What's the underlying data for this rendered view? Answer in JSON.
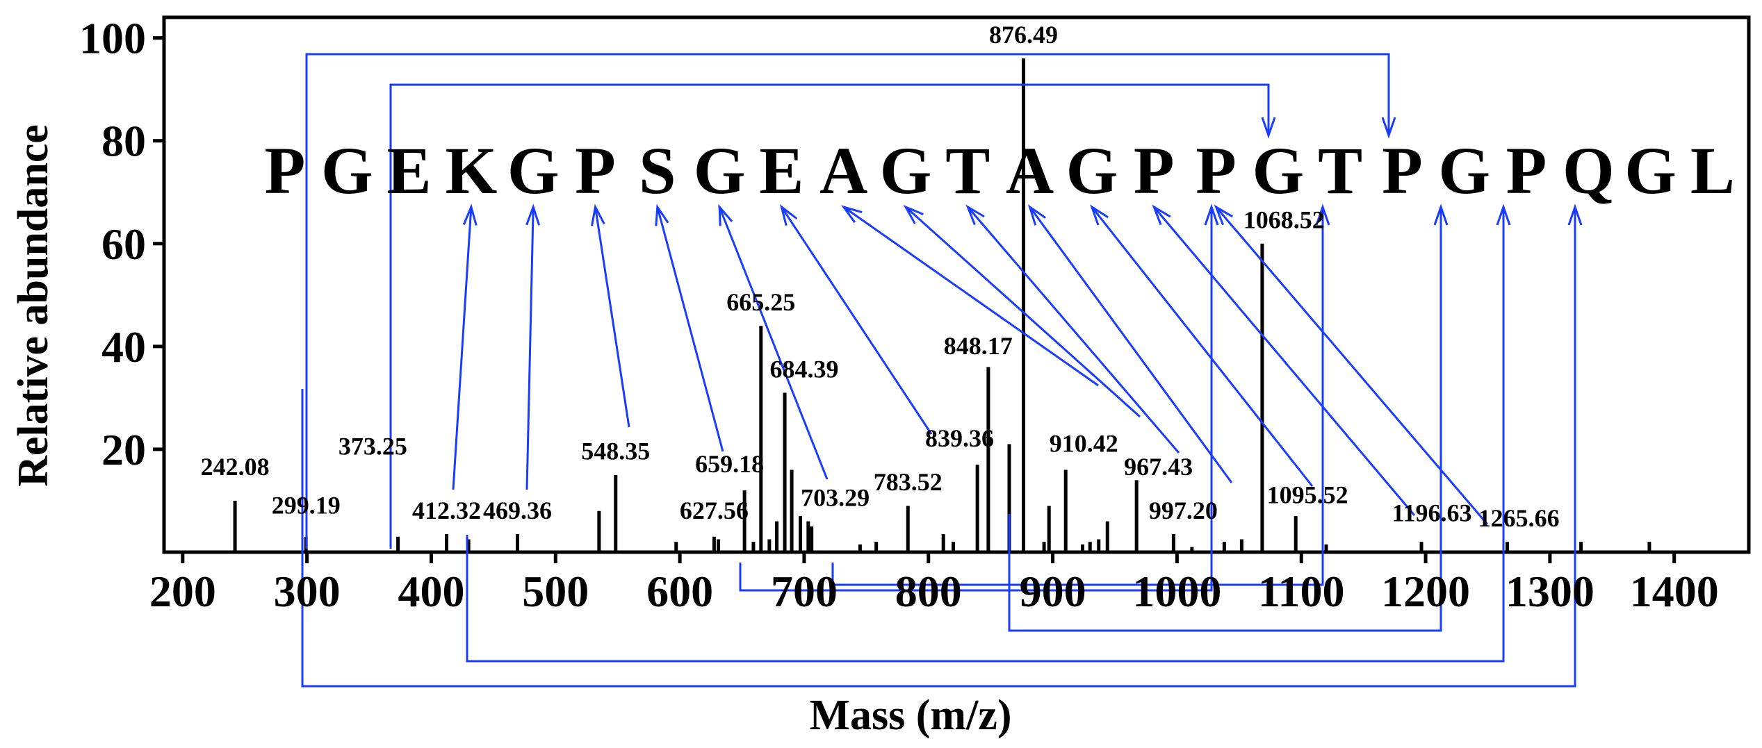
{
  "chart_data": {
    "type": "bar",
    "xlabel": "Mass (m/z)",
    "ylabel": "Relative abundance",
    "xlim": [
      185,
      1460
    ],
    "ylim": [
      0,
      104
    ],
    "xticks": [
      200,
      300,
      400,
      500,
      600,
      700,
      800,
      900,
      1000,
      1100,
      1200,
      1300,
      1400
    ],
    "yticks": [
      20,
      40,
      60,
      80,
      100
    ],
    "accent_color": "#1a3cff",
    "sequence": [
      "P",
      "G",
      "E",
      "K",
      "G",
      "P",
      "S",
      "G",
      "E",
      "A",
      "G",
      "T",
      "A",
      "G",
      "P",
      "P",
      "G",
      "T",
      "P",
      "G",
      "P",
      "Q",
      "G",
      "L"
    ],
    "peaks": [
      {
        "mz": 242.08,
        "intensity": 10
      },
      {
        "mz": 299.19,
        "intensity": 3
      },
      {
        "mz": 373.25,
        "intensity": 3
      },
      {
        "mz": 412.32,
        "intensity": 3.5
      },
      {
        "mz": 430.0,
        "intensity": 2.5
      },
      {
        "mz": 469.36,
        "intensity": 3.5
      },
      {
        "mz": 535.0,
        "intensity": 8
      },
      {
        "mz": 548.35,
        "intensity": 15
      },
      {
        "mz": 597.0,
        "intensity": 2
      },
      {
        "mz": 627.56,
        "intensity": 3
      },
      {
        "mz": 631.0,
        "intensity": 2.5
      },
      {
        "mz": 652.0,
        "intensity": 12
      },
      {
        "mz": 659.18,
        "intensity": 2
      },
      {
        "mz": 665.25,
        "intensity": 44
      },
      {
        "mz": 672.0,
        "intensity": 2.5
      },
      {
        "mz": 678.0,
        "intensity": 6
      },
      {
        "mz": 684.39,
        "intensity": 31
      },
      {
        "mz": 690.0,
        "intensity": 16
      },
      {
        "mz": 697.0,
        "intensity": 7
      },
      {
        "mz": 703.29,
        "intensity": 6
      },
      {
        "mz": 706.0,
        "intensity": 5
      },
      {
        "mz": 745.0,
        "intensity": 1.5
      },
      {
        "mz": 758.0,
        "intensity": 2
      },
      {
        "mz": 783.52,
        "intensity": 9
      },
      {
        "mz": 812.0,
        "intensity": 3.5
      },
      {
        "mz": 820.0,
        "intensity": 2
      },
      {
        "mz": 839.36,
        "intensity": 17
      },
      {
        "mz": 848.17,
        "intensity": 36
      },
      {
        "mz": 865.0,
        "intensity": 21
      },
      {
        "mz": 876.49,
        "intensity": 96
      },
      {
        "mz": 893.0,
        "intensity": 2
      },
      {
        "mz": 897.0,
        "intensity": 9
      },
      {
        "mz": 910.42,
        "intensity": 16
      },
      {
        "mz": 924.0,
        "intensity": 1.5
      },
      {
        "mz": 930.0,
        "intensity": 2
      },
      {
        "mz": 937.0,
        "intensity": 2.5
      },
      {
        "mz": 944.0,
        "intensity": 6
      },
      {
        "mz": 967.43,
        "intensity": 14
      },
      {
        "mz": 997.2,
        "intensity": 3.5
      },
      {
        "mz": 1012.0,
        "intensity": 1
      },
      {
        "mz": 1038.0,
        "intensity": 2
      },
      {
        "mz": 1052.0,
        "intensity": 2.5
      },
      {
        "mz": 1068.52,
        "intensity": 60
      },
      {
        "mz": 1095.52,
        "intensity": 7
      },
      {
        "mz": 1120.0,
        "intensity": 1.5
      },
      {
        "mz": 1196.63,
        "intensity": 2
      },
      {
        "mz": 1265.66,
        "intensity": 2
      },
      {
        "mz": 1325.0,
        "intensity": 2
      },
      {
        "mz": 1380.0,
        "intensity": 2
      }
    ],
    "peak_labels": [
      {
        "text": "242.08",
        "mz": 242.08,
        "y": 15
      },
      {
        "text": "299.19",
        "mz": 299.19,
        "y": 7.5
      },
      {
        "text": "373.25",
        "mz": 353,
        "y": 19
      },
      {
        "text": "412.32",
        "mz": 412.32,
        "y": 6.5
      },
      {
        "text": "469.36",
        "mz": 469.36,
        "y": 6.5
      },
      {
        "text": "548.35",
        "mz": 548.35,
        "y": 18
      },
      {
        "text": "627.56",
        "mz": 627.56,
        "y": 6.5
      },
      {
        "text": "659.18",
        "mz": 640,
        "y": 15.5
      },
      {
        "text": "665.25",
        "mz": 665.25,
        "y": 47
      },
      {
        "text": "684.39",
        "mz": 700,
        "y": 34
      },
      {
        "text": "703.29",
        "mz": 725,
        "y": 9
      },
      {
        "text": "783.52",
        "mz": 783.52,
        "y": 12
      },
      {
        "text": "839.36",
        "mz": 825,
        "y": 20.5
      },
      {
        "text": "848.17",
        "mz": 840,
        "y": 38.5
      },
      {
        "text": "876.49",
        "mz": 876.49,
        "y": 99
      },
      {
        "text": "910.42",
        "mz": 925,
        "y": 19.5
      },
      {
        "text": "967.43",
        "mz": 985,
        "y": 15
      },
      {
        "text": "997.20",
        "mz": 1005,
        "y": 6.5
      },
      {
        "text": "1068.52",
        "mz": 1086,
        "y": 63
      },
      {
        "text": "1095.52",
        "mz": 1105,
        "y": 9.5
      },
      {
        "text": "1196.63",
        "mz": 1205,
        "y": 6
      },
      {
        "text": "1265.66",
        "mz": 1275,
        "y": 5
      }
    ]
  }
}
